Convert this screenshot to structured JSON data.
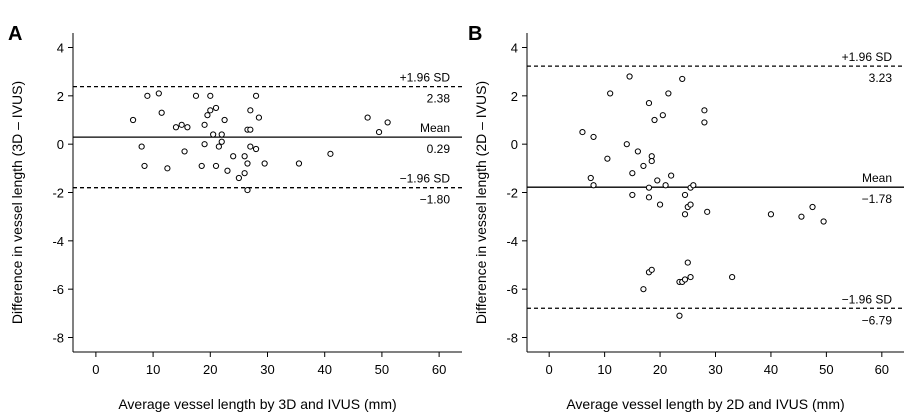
{
  "chart_data": [
    {
      "type": "scatter",
      "panel": "A",
      "xlabel": "Average vessel length by 3D and IVUS (mm)",
      "ylabel": "Difference in vessel length (3D – IVUS)",
      "xlim": [
        -4,
        64
      ],
      "ylim": [
        -8.6,
        4.6
      ],
      "xticks": [
        0,
        10,
        20,
        30,
        40,
        50,
        60
      ],
      "yticks": [
        -8,
        -6,
        -4,
        -2,
        0,
        2,
        4
      ],
      "reference_lines": [
        {
          "name": "+1.96 SD",
          "value_label": "2.38",
          "value": 2.38,
          "style": "dashed"
        },
        {
          "name": "Mean",
          "value_label": "0.29",
          "value": 0.29,
          "style": "solid"
        },
        {
          "name": "−1.96 SD",
          "value_label": "−1.80",
          "value": -1.8,
          "style": "dashed"
        }
      ],
      "points": [
        [
          6.5,
          1.0
        ],
        [
          8.0,
          -0.1
        ],
        [
          8.5,
          -0.9
        ],
        [
          9.0,
          2.0
        ],
        [
          11.0,
          2.1
        ],
        [
          11.5,
          1.3
        ],
        [
          12.5,
          -1.0
        ],
        [
          14.0,
          0.7
        ],
        [
          15.0,
          0.8
        ],
        [
          15.5,
          -0.3
        ],
        [
          16.0,
          0.7
        ],
        [
          17.5,
          2.0
        ],
        [
          18.5,
          -0.9
        ],
        [
          19.0,
          0.0
        ],
        [
          19.0,
          0.8
        ],
        [
          19.5,
          1.2
        ],
        [
          20.0,
          2.0
        ],
        [
          20.0,
          1.4
        ],
        [
          20.5,
          0.4
        ],
        [
          21.0,
          1.5
        ],
        [
          21.0,
          -0.9
        ],
        [
          21.5,
          -0.1
        ],
        [
          22.0,
          0.1
        ],
        [
          22.0,
          0.4
        ],
        [
          22.5,
          1.0
        ],
        [
          23.0,
          -1.1
        ],
        [
          24.0,
          -0.5
        ],
        [
          25.0,
          -1.4
        ],
        [
          26.0,
          -1.2
        ],
        [
          26.0,
          -0.5
        ],
        [
          26.5,
          -0.8
        ],
        [
          26.5,
          -1.9
        ],
        [
          26.5,
          0.6
        ],
        [
          27.0,
          -0.1
        ],
        [
          27.0,
          0.6
        ],
        [
          27.0,
          1.4
        ],
        [
          28.0,
          2.0
        ],
        [
          28.0,
          -0.2
        ],
        [
          28.5,
          1.1
        ],
        [
          29.5,
          -0.8
        ],
        [
          35.5,
          -0.8
        ],
        [
          41.0,
          -0.4
        ],
        [
          47.5,
          1.1
        ],
        [
          49.5,
          0.5
        ],
        [
          51.0,
          0.9
        ]
      ]
    },
    {
      "type": "scatter",
      "panel": "B",
      "xlabel": "Average vessel length by 2D and IVUS (mm)",
      "ylabel": "Difference in vessel length (2D – IVUS)",
      "xlim": [
        -4,
        64
      ],
      "ylim": [
        -8.6,
        4.6
      ],
      "xticks": [
        0,
        10,
        20,
        30,
        40,
        50,
        60
      ],
      "yticks": [
        -8,
        -6,
        -4,
        -2,
        0,
        2,
        4
      ],
      "reference_lines": [
        {
          "name": "+1.96 SD",
          "value_label": "3.23",
          "value": 3.23,
          "style": "dashed"
        },
        {
          "name": "Mean",
          "value_label": "−1.78",
          "value": -1.78,
          "style": "solid"
        },
        {
          "name": "−1.96 SD",
          "value_label": "−6.79",
          "value": -6.79,
          "style": "dashed"
        }
      ],
      "points": [
        [
          6.0,
          0.5
        ],
        [
          7.5,
          -1.4
        ],
        [
          8.0,
          -1.7
        ],
        [
          8.0,
          0.3
        ],
        [
          10.5,
          -0.6
        ],
        [
          11.0,
          2.1
        ],
        [
          14.0,
          0.0
        ],
        [
          14.5,
          2.8
        ],
        [
          15.0,
          -1.2
        ],
        [
          15.0,
          -2.1
        ],
        [
          16.0,
          -0.3
        ],
        [
          17.0,
          -0.9
        ],
        [
          18.0,
          -1.8
        ],
        [
          18.0,
          -2.2
        ],
        [
          18.0,
          1.7
        ],
        [
          18.5,
          -0.5
        ],
        [
          18.5,
          -0.7
        ],
        [
          19.0,
          1.0
        ],
        [
          19.5,
          -1.5
        ],
        [
          20.0,
          -2.5
        ],
        [
          20.5,
          1.2
        ],
        [
          21.0,
          -1.7
        ],
        [
          21.5,
          2.1
        ],
        [
          22.0,
          -1.3
        ],
        [
          24.0,
          2.7
        ],
        [
          24.5,
          -2.1
        ],
        [
          24.5,
          -2.9
        ],
        [
          25.0,
          -2.6
        ],
        [
          25.0,
          -4.9
        ],
        [
          25.5,
          -1.8
        ],
        [
          25.5,
          -2.5
        ],
        [
          26.0,
          -1.7
        ],
        [
          28.0,
          1.4
        ],
        [
          28.0,
          0.9
        ],
        [
          28.5,
          -2.8
        ],
        [
          17.0,
          -6.0
        ],
        [
          18.0,
          -5.3
        ],
        [
          18.5,
          -5.2
        ],
        [
          23.5,
          -5.7
        ],
        [
          24.0,
          -5.7
        ],
        [
          24.5,
          -5.6
        ],
        [
          25.5,
          -5.5
        ],
        [
          23.5,
          -7.1
        ],
        [
          33.0,
          -5.5
        ],
        [
          40.0,
          -2.9
        ],
        [
          45.5,
          -3.0
        ],
        [
          47.5,
          -2.6
        ],
        [
          49.5,
          -3.2
        ]
      ]
    }
  ]
}
